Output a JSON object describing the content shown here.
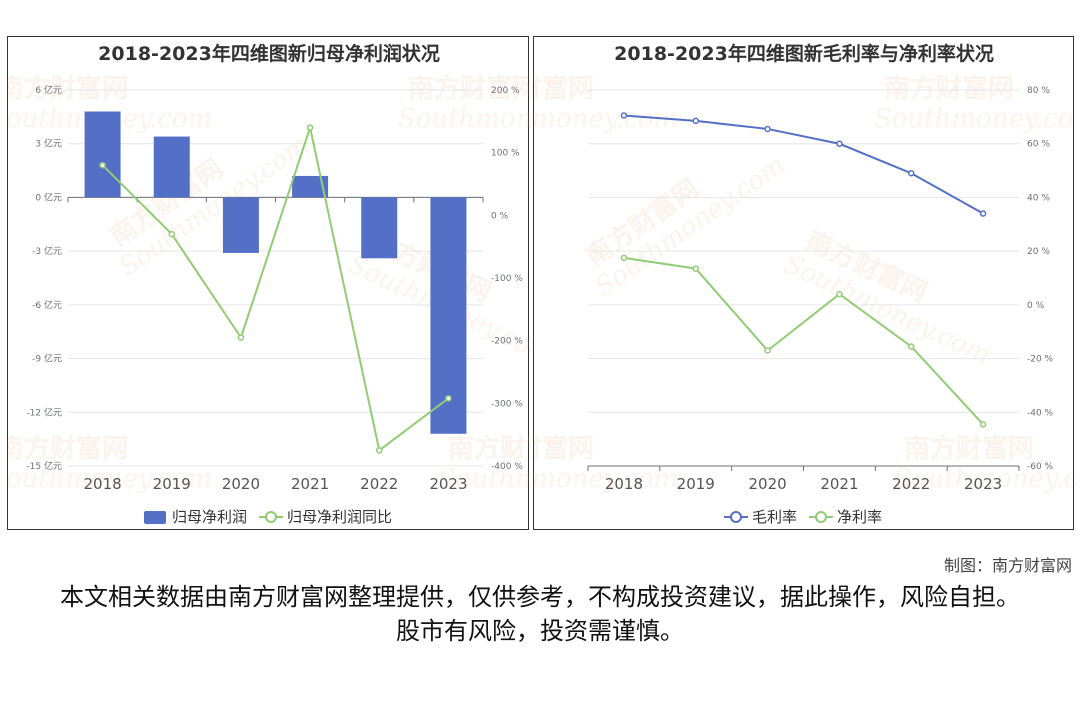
{
  "watermark": {
    "cn": "南方财富网",
    "en": "Southmoney.com"
  },
  "footer": {
    "credit": "制图：南方财富网",
    "disclaimer": "本文相关数据由南方财富网整理提供，仅供参考，不构成投资建议，据此操作，风险自担。股市有风险，投资需谨慎。"
  },
  "colors": {
    "bar": "#5470c6",
    "line_green": "#91cc75",
    "line_blue": "#5470c6",
    "grid": "#e6e6e6",
    "axis_text": "#6e7079"
  },
  "chart_data": [
    {
      "type": "bar",
      "title": "2018-2023年四维图新归母净利润状况",
      "categories": [
        "2018",
        "2019",
        "2020",
        "2021",
        "2022",
        "2023"
      ],
      "y_left": {
        "min": -15,
        "max": 6,
        "step": 3,
        "unit": "亿元"
      },
      "y_right": {
        "min": -400,
        "max": 200,
        "step": 100,
        "unit": "%"
      },
      "series": [
        {
          "name": "归母净利润",
          "kind": "bar",
          "axis": "left",
          "values": [
            4.8,
            3.4,
            -3.1,
            1.2,
            -3.4,
            -13.2
          ]
        },
        {
          "name": "归母净利润同比",
          "kind": "line",
          "axis": "right",
          "values": [
            80,
            -30,
            -195,
            140,
            -375,
            -292
          ]
        }
      ]
    },
    {
      "type": "line",
      "title": "2018-2023年四维图新毛利率与净利率状况",
      "categories": [
        "2018",
        "2019",
        "2020",
        "2021",
        "2022",
        "2023"
      ],
      "y_right": {
        "min": -60,
        "max": 80,
        "step": 20,
        "unit": "%"
      },
      "series": [
        {
          "name": "毛利率",
          "values": [
            70.5,
            68.5,
            65.5,
            60.0,
            49.0,
            34.0
          ]
        },
        {
          "name": "净利率",
          "values": [
            17.5,
            13.5,
            -17.0,
            4.0,
            -15.5,
            -44.5
          ]
        }
      ]
    }
  ]
}
